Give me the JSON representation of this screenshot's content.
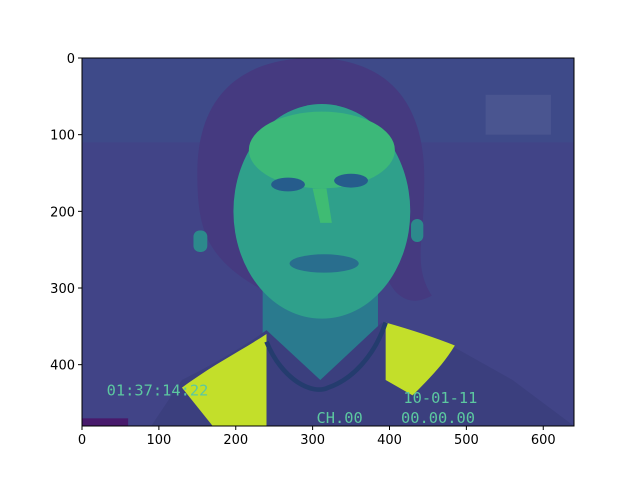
{
  "chart_data": {
    "type": "image",
    "xlim": [
      0,
      640
    ],
    "ylim": [
      480,
      0
    ],
    "xticks": [
      0,
      100,
      200,
      300,
      400,
      500,
      600
    ],
    "yticks": [
      0,
      100,
      200,
      300,
      400
    ],
    "overlay_texts": [
      "01:37:14:22",
      "CH.00",
      "10-01-11",
      "00.00.00"
    ]
  }
}
